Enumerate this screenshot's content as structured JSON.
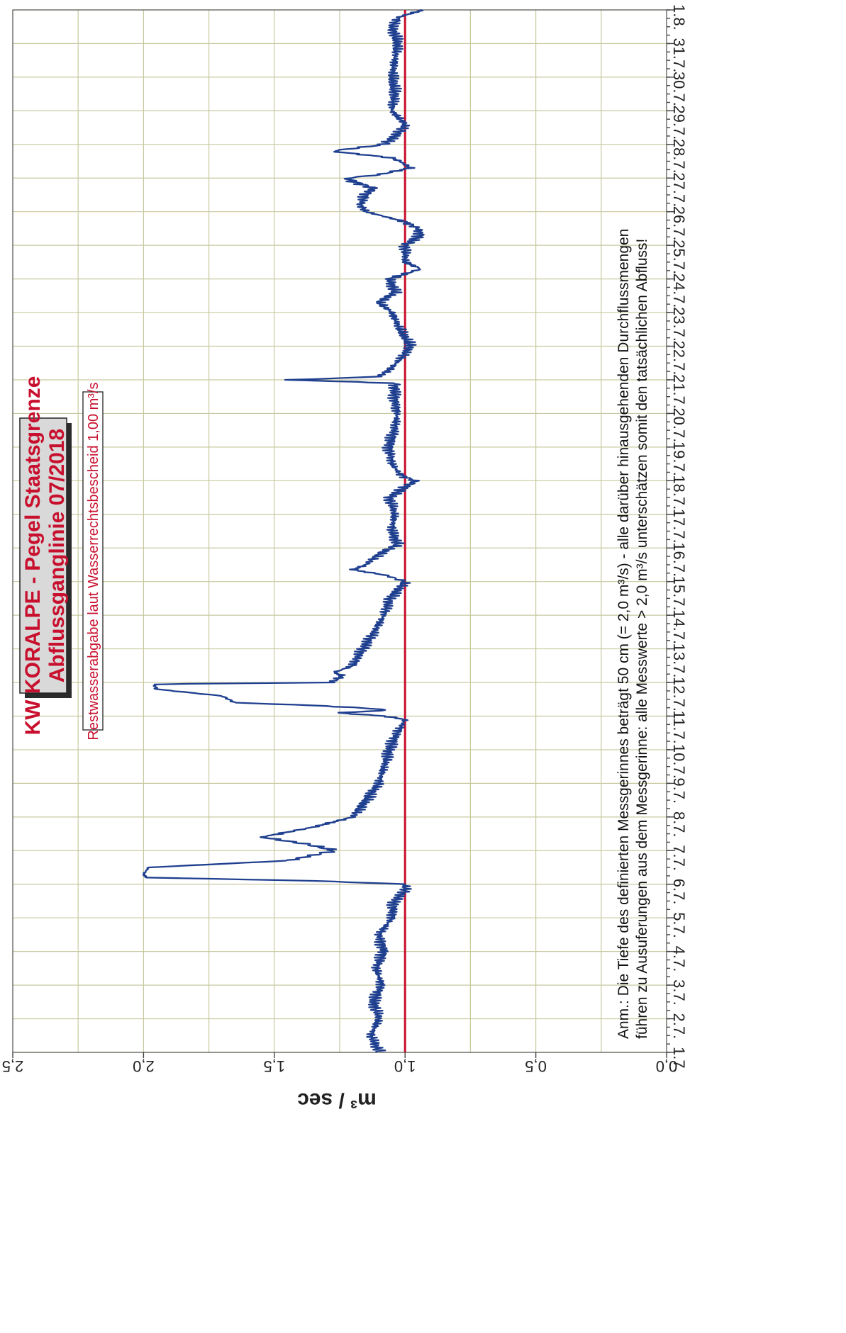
{
  "chart_data": {
    "type": "line",
    "orientation": "rotated-90-clockwise",
    "title_lines": [
      "KW KORALPE - Pegel Staatsgrenze",
      "Abflussganglinie  07/2018"
    ],
    "ylabel": "m³ / sec",
    "ylim": [
      0.0,
      2.5
    ],
    "y_ticks": [
      "0,0",
      "0,5",
      "1,0",
      "1,5",
      "2,0",
      "2,5"
    ],
    "x_ticks": [
      "1.7.",
      "2.7.",
      "3.7.",
      "4.7.",
      "5.7.",
      "6.7.",
      "7.7.",
      "8.7.",
      "9.7.",
      "10.7.",
      "11.7.",
      "12.7.",
      "13.7.",
      "14.7.",
      "15.7.",
      "16.7.",
      "17.7.",
      "18.7.",
      "19.7.",
      "20.7.",
      "21.7.",
      "22.7.",
      "23.7.",
      "24.7.",
      "25.7.",
      "26.7.",
      "27.7.",
      "28.7.",
      "29.7.",
      "30.7.",
      "31.7.",
      "1.8."
    ],
    "xlim": [
      1,
      32
    ],
    "grid": true,
    "reference_line": {
      "label": "Restwasserabgabe laut Wasserrechtsbescheid   1,00 m³/s",
      "value": 1.0,
      "color": "#c8102e"
    },
    "note_lines": [
      "Anm.: Die Tiefe des definierten Messgerinnes beträgt 50 cm (= 2,0 m³/s) - alle darüber hinausgehenden Durchflussmengen",
      "führen zu Ausuferungen aus dem Messgerinne: alle Messwerte > 2,0 m³/s unterschätzen somit den tatsächlichen Abfluss!"
    ],
    "series": [
      {
        "color": "#1f3f8f",
        "x": [
          1.0,
          1.5,
          2.0,
          2.5,
          3.0,
          3.5,
          4.0,
          4.5,
          5.0,
          5.5,
          5.8,
          6.0,
          6.1,
          6.2,
          6.3,
          6.5,
          6.7,
          7.0,
          7.2,
          7.4,
          7.7,
          8.0,
          8.5,
          9.0,
          9.5,
          10.0,
          10.5,
          10.9,
          11.0,
          11.1,
          11.15,
          11.2,
          11.3,
          11.4,
          11.6,
          11.8,
          11.95,
          12.0,
          12.2,
          12.3,
          12.5,
          13.0,
          13.5,
          14.0,
          14.5,
          15.0,
          15.2,
          15.35,
          15.5,
          15.7,
          15.9,
          16.1,
          16.5,
          17.0,
          17.5,
          18.0,
          18.1,
          18.2,
          18.5,
          19.0,
          19.5,
          20.0,
          20.5,
          20.9,
          21.0,
          21.05,
          21.1,
          21.3,
          21.6,
          22.0,
          22.5,
          23.0,
          23.3,
          23.6,
          24.0,
          24.3,
          24.5,
          25.0,
          25.3,
          25.5,
          25.7,
          26.0,
          26.2,
          26.5,
          26.7,
          26.9,
          27.0,
          27.1,
          27.3,
          27.5,
          27.6,
          27.8,
          28.0,
          28.3,
          28.6,
          29.0,
          29.5,
          30.0,
          30.5,
          31.0,
          31.5,
          31.8,
          32.0
        ],
        "values": [
          1.1,
          1.13,
          1.1,
          1.12,
          1.09,
          1.11,
          1.08,
          1.1,
          1.05,
          1.04,
          1.0,
          1.0,
          1.35,
          1.99,
          2.0,
          1.98,
          1.45,
          1.27,
          1.38,
          1.55,
          1.35,
          1.2,
          1.15,
          1.1,
          1.08,
          1.06,
          1.03,
          1.0,
          1.08,
          1.26,
          1.1,
          1.08,
          1.3,
          1.65,
          1.7,
          1.95,
          1.96,
          1.28,
          1.24,
          1.27,
          1.2,
          1.16,
          1.12,
          1.08,
          1.06,
          1.0,
          1.08,
          1.2,
          1.15,
          1.12,
          1.08,
          1.03,
          1.05,
          1.04,
          1.06,
          0.96,
          1.0,
          1.02,
          1.05,
          1.06,
          1.04,
          1.03,
          1.04,
          1.04,
          1.45,
          1.24,
          1.1,
          1.06,
          1.02,
          0.98,
          1.02,
          1.05,
          1.1,
          1.04,
          1.06,
          0.94,
          1.0,
          1.0,
          0.94,
          0.95,
          1.0,
          1.15,
          1.17,
          1.15,
          1.12,
          1.2,
          1.22,
          1.1,
          0.98,
          1.02,
          1.05,
          1.28,
          1.08,
          1.03,
          1.0,
          1.05,
          1.04,
          1.05,
          1.04,
          1.03,
          1.05,
          1.02,
          0.93
        ]
      }
    ]
  }
}
